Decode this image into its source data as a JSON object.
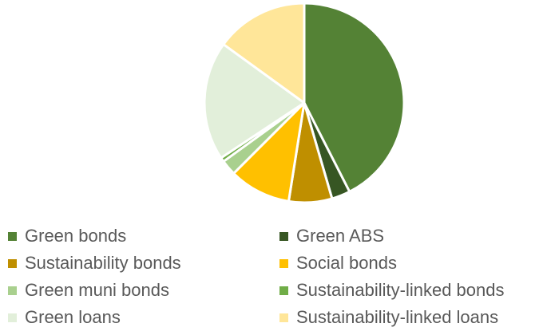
{
  "chart_data": {
    "type": "pie",
    "title": "",
    "categories": [
      "Green bonds",
      "Green ABS",
      "Sustainability bonds",
      "Social bonds",
      "Green muni bonds",
      "Sustainability-linked bonds",
      "Green loans",
      "Sustainability-linked loans"
    ],
    "values": [
      42.5,
      3.0,
      7.0,
      10.0,
      2.5,
      0.7,
      19.3,
      15.0
    ],
    "colors": [
      "#548235",
      "#375623",
      "#BF8F00",
      "#FFC000",
      "#A9D08E",
      "#70AD47",
      "#E2EFDA",
      "#FFE699"
    ],
    "legend_position": "bottom"
  }
}
